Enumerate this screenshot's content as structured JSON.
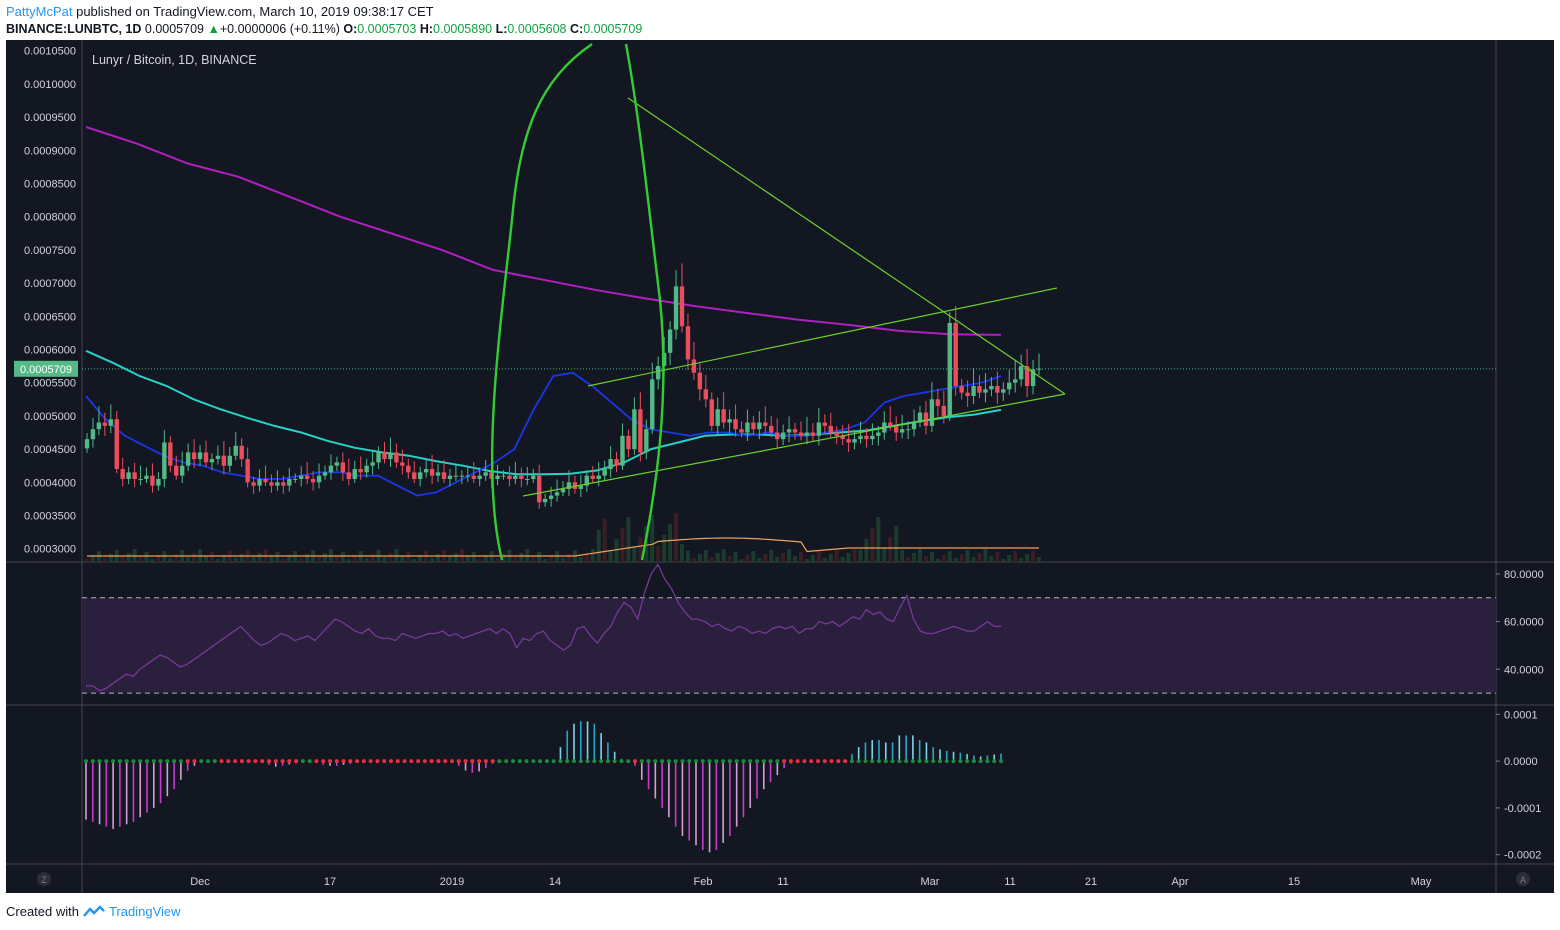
{
  "header": {
    "author": "PattyMcPat",
    "published_text": "published on TradingView.com, March 10, 2019 09:38:17 CET",
    "symbol": "BINANCE:LUNBTC, 1D",
    "last": "0.0005709",
    "change_arrow": "▲",
    "change": "+0.0000006 (+0.11%)",
    "o_label": "O:",
    "o_value": "0.0005703",
    "h_label": "H:",
    "h_value": "0.0005890",
    "l_label": "L:",
    "l_value": "0.0005608",
    "c_label": "C:",
    "c_value": "0.0005709"
  },
  "footer": {
    "created_with": "Created with",
    "brand": "TradingView"
  },
  "colors": {
    "background": "#131722",
    "up": "#53b987",
    "down": "#eb4d5c",
    "ma_fast": "#1b36e8",
    "ma_mid": "#26d1c6",
    "ma_slow": "#b01fc0",
    "trendline": "#6bd12a",
    "annotation": "#33cc33",
    "rsi": "#7b3b9e",
    "volume_ma": "#f0a05a"
  },
  "chart_data": [
    {
      "type": "candlestick",
      "title": "Lunyr / Bitcoin, 1D, BINANCE",
      "y_axis": {
        "ticks": [
          "0.0003000",
          "0.0003500",
          "0.0004000",
          "0.0004500",
          "0.0005000",
          "0.0005500",
          "0.0006000",
          "0.0006500",
          "0.0007000",
          "0.0007500",
          "0.0008000",
          "0.0008500",
          "0.0009000",
          "0.0009500",
          "0.0010000",
          "0.0010500"
        ],
        "range": [
          0.00028,
          0.00106
        ],
        "last_price_label": "0.0005709",
        "last_price": 0.0005709
      },
      "x_axis": {
        "ticks": [
          "Dec",
          "17",
          "2019",
          "14",
          "Feb",
          "11",
          "Mar",
          "11",
          "21",
          "Apr",
          "15",
          "May"
        ]
      },
      "closes": [
        0.000465,
        0.00048,
        0.00049,
        0.000485,
        0.000495,
        0.00042,
        0.000405,
        0.000415,
        0.000405,
        0.000405,
        0.00041,
        0.000395,
        0.000405,
        0.00046,
        0.000425,
        0.00041,
        0.000425,
        0.000445,
        0.000435,
        0.000445,
        0.00043,
        0.000435,
        0.00044,
        0.000425,
        0.00044,
        0.000455,
        0.000435,
        0.0004,
        0.000395,
        0.000405,
        0.0004,
        0.000395,
        0.0004,
        0.000395,
        0.000405,
        0.000405,
        0.00041,
        0.000405,
        0.0004,
        0.00041,
        0.000415,
        0.000425,
        0.00043,
        0.000415,
        0.000405,
        0.00042,
        0.000415,
        0.000425,
        0.00043,
        0.000445,
        0.000435,
        0.000445,
        0.00043,
        0.000425,
        0.000415,
        0.000405,
        0.000415,
        0.00042,
        0.00041,
        0.000415,
        0.000405,
        0.00041,
        0.00041,
        0.00041,
        0.00041,
        0.000405,
        0.00041,
        0.000415,
        0.000405,
        0.00041,
        0.00041,
        0.000405,
        0.00041,
        0.000405,
        0.000405,
        0.00041,
        0.00037,
        0.000375,
        0.00038,
        0.000385,
        0.00039,
        0.0004,
        0.00039,
        0.000395,
        0.00041,
        0.000405,
        0.00041,
        0.00042,
        0.000435,
        0.000425,
        0.00047,
        0.00045,
        0.00051,
        0.000445,
        0.00048,
        0.000555,
        0.000575,
        0.000595,
        0.00063,
        0.000695,
        0.000635,
        0.000585,
        0.000565,
        0.00054,
        0.000525,
        0.000485,
        0.00051,
        0.00049,
        0.000495,
        0.00048,
        0.000475,
        0.00049,
        0.00048,
        0.00049,
        0.000485,
        0.000475,
        0.000465,
        0.000475,
        0.00048,
        0.000475,
        0.00047,
        0.000475,
        0.00047,
        0.00049,
        0.000485,
        0.000475,
        0.00047,
        0.000465,
        0.00046,
        0.000465,
        0.00047,
        0.000465,
        0.00047,
        0.000475,
        0.00049,
        0.000485,
        0.000475,
        0.00048,
        0.00048,
        0.00049,
        0.000505,
        0.000485,
        0.000525,
        0.000515,
        0.0005,
        0.00064,
        0.000545,
        0.000535,
        0.00053,
        0.000545,
        0.000535,
        0.00054,
        0.000545,
        0.000535,
        0.00054,
        0.00055,
        0.000555,
        0.000575,
        0.000545,
        0.00057,
        0.000571
      ],
      "ma_fast_approx": [
        0.00053,
        0.000495,
        0.00047,
        0.000455,
        0.00044,
        0.00043,
        0.000425,
        0.000415,
        0.00041,
        0.000405,
        0.000405,
        0.00041,
        0.000415,
        0.000415,
        0.00041,
        0.00041,
        0.000395,
        0.00038,
        0.000385,
        0.0004,
        0.000415,
        0.00043,
        0.00045,
        0.00051,
        0.00056,
        0.000565,
        0.000545,
        0.00052,
        0.000495,
        0.00048,
        0.000475,
        0.00047,
        0.000475,
        0.000475,
        0.00047,
        0.000475,
        0.00047,
        0.00047,
        0.000475,
        0.00048,
        0.00049,
        0.00052,
        0.00053,
        0.000535,
        0.00054,
        0.000545,
        0.00055,
        0.00056
      ],
      "ma_mid_approx": [
        0.000598,
        0.00058,
        0.00056,
        0.000545,
        0.000525,
        0.00051,
        0.000497,
        0.000485,
        0.000475,
        0.000462,
        0.000452,
        0.000445,
        0.00044,
        0.000432,
        0.000425,
        0.000417,
        0.000412,
        0.000412,
        0.000413,
        0.000418,
        0.00043,
        0.00045,
        0.00046,
        0.00047,
        0.000472,
        0.000472,
        0.00047,
        0.000472,
        0.000475,
        0.000478,
        0.000485,
        0.000492,
        0.000498,
        0.000502,
        0.000509
      ],
      "ma_slow_approx": [
        0.000935,
        0.00091,
        0.00088,
        0.00086,
        0.00083,
        0.0008,
        0.000775,
        0.00075,
        0.00072,
        0.000705,
        0.00069,
        0.000677,
        0.000665,
        0.000655,
        0.000645,
        0.000637,
        0.000628,
        0.000623,
        0.000622
      ],
      "trendlines": [
        {
          "name": "support",
          "from": [
            "2019-01-09",
            0.000369
          ],
          "to": [
            "2019-03-20",
            0.0005225
          ]
        },
        {
          "name": "resistance-upper",
          "from": [
            "2019-01-19",
            0.000549
          ],
          "to": [
            "2019-03-19",
            0.000685
          ]
        },
        {
          "name": "descending",
          "from": [
            "2019-01-22",
            0.000975
          ],
          "to": [
            "2019-03-20",
            0.0005225
          ]
        }
      ]
    },
    {
      "type": "line",
      "name": "RSI",
      "y_axis": {
        "ticks": [
          "80.0000",
          "60.0000",
          "40.0000"
        ],
        "range": [
          25,
          85
        ],
        "bands": [
          70,
          30
        ]
      },
      "values": [
        33,
        33,
        31,
        32,
        34,
        36,
        38,
        37,
        40,
        42,
        44,
        46,
        45,
        43,
        41,
        42,
        44,
        46,
        48,
        50,
        52,
        54,
        56,
        58,
        55,
        52,
        50,
        51,
        53,
        55,
        54,
        52,
        53,
        54,
        52,
        55,
        58,
        61,
        60,
        58,
        56,
        55,
        57,
        54,
        53,
        53,
        52,
        55,
        54,
        53,
        54,
        55,
        55,
        56,
        54,
        55,
        53,
        54,
        55,
        56,
        57,
        55,
        57,
        55,
        49,
        53,
        52,
        55,
        56,
        52,
        50,
        48,
        50,
        57,
        58,
        54,
        51,
        55,
        58,
        64,
        68,
        66,
        61,
        72,
        80,
        84,
        78,
        74,
        68,
        64,
        61,
        61,
        60,
        58,
        59,
        57,
        56,
        58,
        57,
        55,
        56,
        55,
        57,
        58,
        57,
        58,
        55,
        57,
        57,
        60,
        59,
        60,
        58,
        60,
        62,
        61,
        65,
        63,
        64,
        61,
        60,
        66,
        71,
        61,
        56,
        55,
        55,
        56,
        57,
        58,
        57,
        56,
        56,
        58,
        60,
        58,
        58
      ]
    },
    {
      "type": "bar",
      "name": "Histogram oscillator",
      "y_axis": {
        "ticks": [
          "0.0001",
          "0.0000",
          "-0.0001",
          "-0.0002"
        ],
        "range": [
          -0.00022,
          0.00012
        ]
      },
      "values": [
        -0.000125,
        -0.00013,
        -0.000135,
        -0.00014,
        -0.000145,
        -0.00014,
        -0.000135,
        -0.00013,
        -0.00012,
        -0.00011,
        -0.0001,
        -9e-05,
        -7.5e-05,
        -6e-05,
        -4e-05,
        -2e-05,
        -1e-05,
        0.0,
        0.0,
        0.0,
        0.0,
        0.0,
        0.0,
        0.0,
        0.0,
        0.0,
        -3e-06,
        -8e-06,
        -1.2e-05,
        -1e-05,
        -7e-06,
        -5e-06,
        0.0,
        0.0,
        -4e-06,
        -8e-06,
        -1e-05,
        -1e-05,
        -8e-06,
        -6e-06,
        -4e-06,
        0.0,
        0.0,
        0.0,
        0.0,
        0.0,
        0.0,
        0.0,
        0.0,
        0.0,
        0.0,
        0.0,
        0.0,
        0.0,
        -4e-06,
        -1e-05,
        -2e-05,
        -2.5e-05,
        -2.2e-05,
        -1.5e-05,
        -5e-06,
        0.0,
        0.0,
        0.0,
        0.0,
        0.0,
        0.0,
        0.0,
        0.0,
        0.0,
        3e-05,
        6.5e-05,
        8e-05,
        8.5e-05,
        8.5e-05,
        8e-05,
        6e-05,
        4e-05,
        2e-05,
        5e-06,
        0.0,
        -1e-05,
        -4e-05,
        -6e-05,
        -8e-05,
        -0.0001,
        -0.00012,
        -0.00014,
        -0.00016,
        -0.00017,
        -0.00018,
        -0.00019,
        -0.000195,
        -0.00019,
        -0.000175,
        -0.00016,
        -0.00014,
        -0.00012,
        -0.0001,
        -8e-05,
        -6e-05,
        -4.5e-05,
        -3e-05,
        -1.5e-05,
        -5e-06,
        0.0,
        0.0,
        0.0,
        0.0,
        0.0,
        0.0,
        0.0,
        0.0,
        1.5e-05,
        3e-05,
        4e-05,
        4.5e-05,
        4.5e-05,
        4e-05,
        4e-05,
        5.5e-05,
        5.5e-05,
        5.5e-05,
        4.5e-05,
        4e-05,
        3e-05,
        2.5e-05,
        2.2e-05,
        2e-05,
        1.8e-05,
        1.5e-05,
        1.2e-05,
        1e-05,
        1.2e-05,
        1.4e-05,
        1.6e-05
      ]
    }
  ]
}
